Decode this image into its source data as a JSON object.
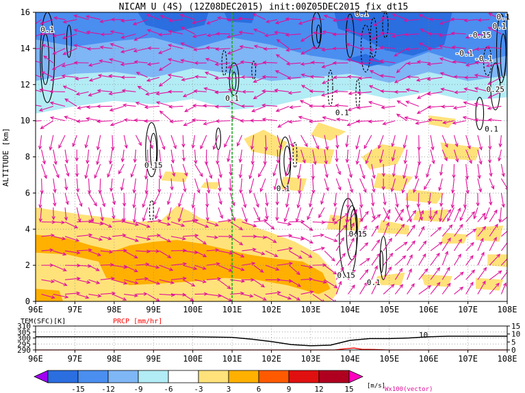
{
  "title": "NICAM U (4S) (12Z08DEC2015) init:00Z05DEC2015 fix_dt15",
  "chart_data": [
    {
      "type": "heatmap",
      "panel": "main",
      "ylabel": "ALTITUDE [km]",
      "xlim": [
        96,
        108
      ],
      "ylim": [
        0,
        16
      ],
      "x_ticks": [
        "96E",
        "97E",
        "98E",
        "99E",
        "100E",
        "101E",
        "102E",
        "103E",
        "104E",
        "105E",
        "106E",
        "107E",
        "108E"
      ],
      "y_ticks": [
        "0",
        "2",
        "4",
        "6",
        "8",
        "10",
        "12",
        "14",
        "16"
      ],
      "grid": true,
      "marker_line_x": 101,
      "marker_line_color": "#22aa22",
      "contour_labels": [
        {
          "text": "0.1",
          "x": 96.3,
          "y": 14.9
        },
        {
          "text": "0.1",
          "x": 101.0,
          "y": 11.1
        },
        {
          "text": "0.15",
          "x": 99.0,
          "y": 7.4
        },
        {
          "text": "0.1",
          "x": 102.3,
          "y": 6.1
        },
        {
          "text": "0.1",
          "x": 103.8,
          "y": 10.3
        },
        {
          "text": "0.1",
          "x": 107.6,
          "y": 9.4
        },
        {
          "text": "0.15",
          "x": 104.2,
          "y": 3.6
        },
        {
          "text": "0.15",
          "x": 103.9,
          "y": 1.3
        },
        {
          "text": "0.1",
          "x": 104.6,
          "y": 0.9
        },
        {
          "text": "-0.15",
          "x": 107.3,
          "y": 14.6
        },
        {
          "text": "-0.1",
          "x": 106.9,
          "y": 13.6
        },
        {
          "text": "-0.1",
          "x": 107.4,
          "y": 13.3
        },
        {
          "text": "0.25",
          "x": 107.7,
          "y": 11.6
        },
        {
          "text": "0.1",
          "x": 107.9,
          "y": 15.6
        },
        {
          "text": "0.1",
          "x": 107.8,
          "y": 15.1
        },
        {
          "text": "0.1",
          "x": 104.3,
          "y": 15.8
        }
      ]
    },
    {
      "type": "line",
      "panel": "sub",
      "series": [
        {
          "name": "TEM(SFC)[K]",
          "color": "#000000",
          "x": [
            96,
            97,
            98,
            99,
            100,
            101,
            101.5,
            102,
            102.5,
            103,
            103.5,
            104,
            104.5,
            105,
            105.5,
            106,
            106.5,
            107,
            107.5,
            108
          ],
          "y": [
            301,
            301,
            301,
            301,
            301,
            300.5,
            299,
            297,
            294.5,
            293.5,
            294,
            298,
            299.5,
            299.5,
            300,
            301,
            301.5,
            301.5,
            301.5,
            301.5
          ]
        },
        {
          "name": "PRCP [mm/hr]",
          "color": "#ff0000",
          "x": [
            96,
            100,
            103.6,
            103.9,
            104.1,
            104.3,
            104.6,
            105,
            106,
            108
          ],
          "y": [
            0,
            0,
            0,
            0.8,
            1.2,
            0.4,
            0.3,
            0,
            0,
            0
          ]
        }
      ],
      "xlim": [
        96,
        108
      ],
      "left_ylim": [
        290,
        310
      ],
      "left_ticks": [
        "290",
        "295",
        "300",
        "305",
        "310"
      ],
      "right_ylim": [
        0,
        15
      ],
      "right_ticks": [
        "0",
        "5",
        "10",
        "15"
      ],
      "x_ticks": [
        "96E",
        "97E",
        "98E",
        "99E",
        "100E",
        "101E",
        "102E",
        "103E",
        "104E",
        "105E",
        "106E",
        "107E",
        "108E"
      ],
      "annotation": "10"
    }
  ],
  "colorbar": {
    "units": "[m/s]",
    "labels": [
      "-15",
      "-12",
      "-9",
      "-6",
      "-3",
      "3",
      "6",
      "9",
      "12",
      "15"
    ],
    "colors": [
      "#a000f0",
      "#2a6ee0",
      "#4a8ef0",
      "#7fb6f5",
      "#b2ecf5",
      "#ffffff",
      "#ffe27a",
      "#ffb000",
      "#ff5a00",
      "#e01010",
      "#b00020",
      "#ff00c0"
    ]
  },
  "vector_label": "Wx100(vector)",
  "colors": {
    "vector": "#e0109a",
    "blue_dark": "#2a6ee0",
    "blue_mid": "#4a8ef0",
    "blue_light": "#7fb6f5",
    "cyan": "#b2ecf5",
    "yellow": "#ffe27a",
    "orange": "#ffb000",
    "grid": "#888888"
  }
}
